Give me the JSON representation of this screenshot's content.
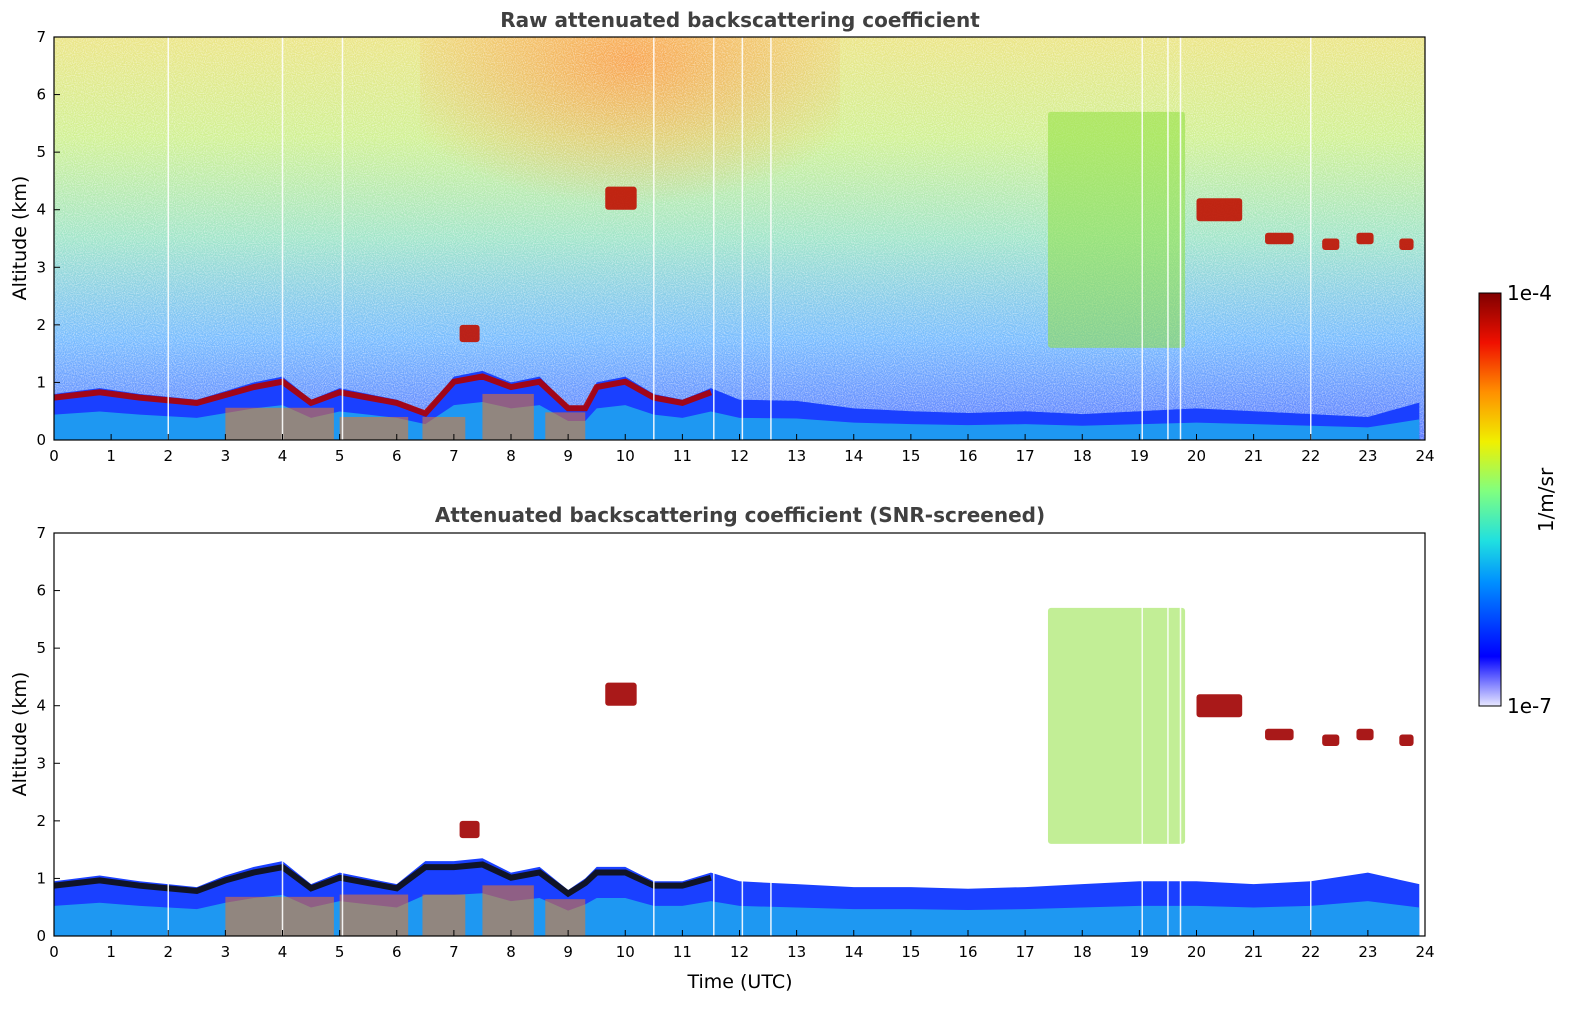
{
  "chart_data": [
    {
      "type": "heatmap",
      "title": "Raw attenuated backscattering coefficient",
      "xlabel": "",
      "ylabel": "Altitude (km)",
      "xlim": [
        0,
        24
      ],
      "ylim": [
        0,
        7
      ],
      "xticks": [
        "0",
        "1",
        "2",
        "3",
        "4",
        "5",
        "6",
        "7",
        "8",
        "9",
        "10",
        "11",
        "12",
        "13",
        "14",
        "15",
        "16",
        "17",
        "18",
        "19",
        "20",
        "21",
        "22",
        "23",
        "24"
      ],
      "yticks": [
        "0",
        "1",
        "2",
        "3",
        "4",
        "5",
        "6",
        "7"
      ],
      "screening": "none",
      "boundary_layer_top_km": [
        [
          0,
          0.8
        ],
        [
          0.8,
          0.9
        ],
        [
          1.5,
          0.8
        ],
        [
          2.5,
          0.7
        ],
        [
          3,
          0.85
        ],
        [
          3.5,
          1.0
        ],
        [
          4,
          1.1
        ],
        [
          4.5,
          0.7
        ],
        [
          5,
          0.9
        ],
        [
          5.5,
          0.8
        ],
        [
          6,
          0.7
        ],
        [
          6.5,
          0.5
        ],
        [
          7,
          1.1
        ],
        [
          7.5,
          1.2
        ],
        [
          8,
          1.0
        ],
        [
          8.5,
          1.1
        ],
        [
          9,
          0.6
        ],
        [
          9.3,
          0.6
        ],
        [
          9.5,
          1.0
        ],
        [
          10,
          1.1
        ],
        [
          10.5,
          0.8
        ],
        [
          11,
          0.7
        ],
        [
          11.5,
          0.9
        ],
        [
          12,
          0.7
        ],
        [
          13,
          0.68
        ],
        [
          14,
          0.55
        ],
        [
          15,
          0.5
        ],
        [
          16,
          0.47
        ],
        [
          17,
          0.5
        ],
        [
          18,
          0.45
        ],
        [
          19,
          0.5
        ],
        [
          20,
          0.55
        ],
        [
          21,
          0.5
        ],
        [
          22,
          0.45
        ],
        [
          23,
          0.4
        ],
        [
          23.9,
          0.65
        ]
      ],
      "cloud_layers": [
        {
          "t0": 9.65,
          "t1": 10.2,
          "z0": 4.0,
          "z1": 4.4,
          "intensity": "high"
        },
        {
          "t0": 7.1,
          "t1": 7.45,
          "z0": 1.7,
          "z1": 2.0,
          "intensity": "high"
        },
        {
          "t0": 17.4,
          "t1": 19.8,
          "z0": 1.6,
          "z1": 5.7,
          "intensity": "medium"
        },
        {
          "t0": 20.0,
          "t1": 20.8,
          "z0": 3.8,
          "z1": 4.2,
          "intensity": "high"
        },
        {
          "t0": 21.2,
          "t1": 21.7,
          "z0": 3.4,
          "z1": 3.6,
          "intensity": "high"
        },
        {
          "t0": 22.2,
          "t1": 22.5,
          "z0": 3.3,
          "z1": 3.5,
          "intensity": "high"
        },
        {
          "t0": 22.8,
          "t1": 23.1,
          "z0": 3.4,
          "z1": 3.6,
          "intensity": "high"
        },
        {
          "t0": 23.55,
          "t1": 23.8,
          "z0": 3.3,
          "z1": 3.5,
          "intensity": "high"
        }
      ]
    },
    {
      "type": "heatmap",
      "title": "Attenuated backscattering coefficient (SNR-screened)",
      "xlabel": "Time (UTC)",
      "ylabel": "Altitude (km)",
      "xlim": [
        0,
        24
      ],
      "ylim": [
        0,
        7
      ],
      "xticks": [
        "0",
        "1",
        "2",
        "3",
        "4",
        "5",
        "6",
        "7",
        "8",
        "9",
        "10",
        "11",
        "12",
        "13",
        "14",
        "15",
        "16",
        "17",
        "18",
        "19",
        "20",
        "21",
        "22",
        "23",
        "24"
      ],
      "yticks": [
        "0",
        "1",
        "2",
        "3",
        "4",
        "5",
        "6",
        "7"
      ],
      "screening": "SNR",
      "boundary_layer_top_km": [
        [
          0,
          0.95
        ],
        [
          0.8,
          1.05
        ],
        [
          1.5,
          0.95
        ],
        [
          2.5,
          0.85
        ],
        [
          3,
          1.05
        ],
        [
          3.5,
          1.2
        ],
        [
          4,
          1.3
        ],
        [
          4.5,
          0.9
        ],
        [
          5,
          1.1
        ],
        [
          5.5,
          1.0
        ],
        [
          6,
          0.9
        ],
        [
          6.5,
          1.3
        ],
        [
          7,
          1.3
        ],
        [
          7.5,
          1.35
        ],
        [
          8,
          1.1
        ],
        [
          8.5,
          1.2
        ],
        [
          9,
          0.8
        ],
        [
          9.3,
          1.0
        ],
        [
          9.5,
          1.2
        ],
        [
          10,
          1.2
        ],
        [
          10.5,
          0.95
        ],
        [
          11,
          0.95
        ],
        [
          11.5,
          1.1
        ],
        [
          12,
          0.95
        ],
        [
          13,
          0.9
        ],
        [
          14,
          0.85
        ],
        [
          15,
          0.85
        ],
        [
          16,
          0.82
        ],
        [
          17,
          0.85
        ],
        [
          18,
          0.9
        ],
        [
          19,
          0.95
        ],
        [
          20,
          0.95
        ],
        [
          21,
          0.9
        ],
        [
          22,
          0.95
        ],
        [
          23,
          1.1
        ],
        [
          23.9,
          0.9
        ]
      ]
    }
  ],
  "colorbar": {
    "label": "1/m/sr",
    "max_label": "1e-4",
    "min_label": "1e-7",
    "range": [
      1e-07,
      0.0001
    ],
    "scale": "log",
    "colormap": "jet"
  }
}
